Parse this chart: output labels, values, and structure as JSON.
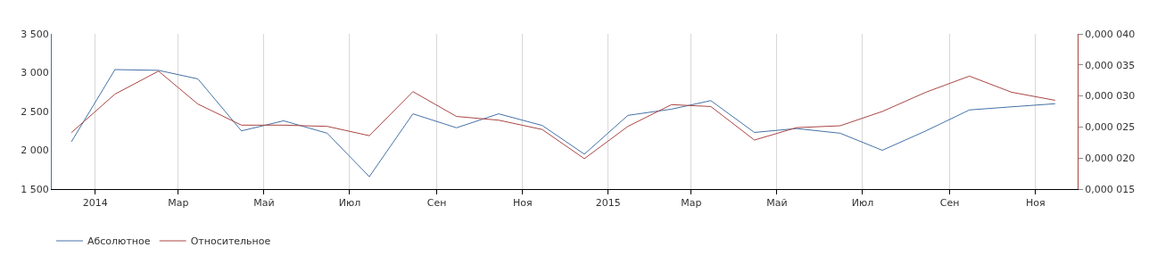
{
  "chart_data": {
    "type": "line",
    "x": [
      "2013-12-15",
      "2014-01-15",
      "2014-02-15",
      "2014-03-15",
      "2014-04-15",
      "2014-05-15",
      "2014-06-15",
      "2014-07-15",
      "2014-08-15",
      "2014-09-15",
      "2014-10-15",
      "2014-11-15",
      "2014-12-15",
      "2015-01-15",
      "2015-02-15",
      "2015-03-15",
      "2015-04-15",
      "2015-05-15",
      "2015-06-15",
      "2015-07-15",
      "2015-08-15",
      "2015-09-15",
      "2015-10-15",
      "2015-11-15"
    ],
    "series": [
      {
        "name": "Абсолютное",
        "color": "#4572a7",
        "values": [
          2110,
          3040,
          3030,
          2920,
          2250,
          2380,
          2220,
          1660,
          2470,
          2290,
          2470,
          2320,
          1950,
          2450,
          2530,
          2640,
          2230,
          2280,
          2220,
          2000,
          2250,
          2520,
          2560,
          2600
        ]
      },
      {
        "name": "Относительное",
        "color": "#aa4643",
        "axis": "y2",
        "values": [
          2.41e-05,
          3.03e-05,
          3.4e-05,
          2.87e-05,
          2.53e-05,
          2.53e-05,
          2.51e-05,
          2.36e-05,
          3.07e-05,
          2.67e-05,
          2.61e-05,
          2.46e-05,
          1.99e-05,
          2.51e-05,
          2.86e-05,
          2.83e-05,
          2.29e-05,
          2.49e-05,
          2.52e-05,
          2.75e-05,
          3.06e-05,
          3.32e-05,
          3.06e-05,
          2.93e-05
        ]
      }
    ],
    "xlim": [
      "2013-12-01",
      "2015-12-01"
    ],
    "xticks": [
      {
        "value": "2014-01-01",
        "label": "2014"
      },
      {
        "value": "2014-03-01",
        "label": "Мар"
      },
      {
        "value": "2014-05-01",
        "label": "Май"
      },
      {
        "value": "2014-07-01",
        "label": "Июл"
      },
      {
        "value": "2014-09-01",
        "label": "Сен"
      },
      {
        "value": "2014-11-01",
        "label": "Ноя"
      },
      {
        "value": "2015-01-01",
        "label": "2015"
      },
      {
        "value": "2015-03-01",
        "label": "Мар"
      },
      {
        "value": "2015-05-01",
        "label": "Май"
      },
      {
        "value": "2015-07-01",
        "label": "Июл"
      },
      {
        "value": "2015-09-01",
        "label": "Сен"
      },
      {
        "value": "2015-11-01",
        "label": "Ноя"
      }
    ],
    "ylim": [
      1500,
      3500
    ],
    "yticks": [
      {
        "value": 1500,
        "label": "1 500"
      },
      {
        "value": 2000,
        "label": "2 000"
      },
      {
        "value": 2500,
        "label": "2 500"
      },
      {
        "value": 3000,
        "label": "3 000"
      },
      {
        "value": 3500,
        "label": "3 500"
      }
    ],
    "y2lim": [
      1.5e-05,
      4e-05
    ],
    "y2ticks": [
      {
        "value": 1.5e-05,
        "label": "0,000 015"
      },
      {
        "value": 2e-05,
        "label": "0,000 020"
      },
      {
        "value": 2.5e-05,
        "label": "0,000 025"
      },
      {
        "value": 3e-05,
        "label": "0,000 030"
      },
      {
        "value": 3.5e-05,
        "label": "0,000 035"
      },
      {
        "value": 4e-05,
        "label": "0,000 040"
      }
    ],
    "grid": "x",
    "legend": "bottom left",
    "marker": "none",
    "line_style": "solid"
  }
}
